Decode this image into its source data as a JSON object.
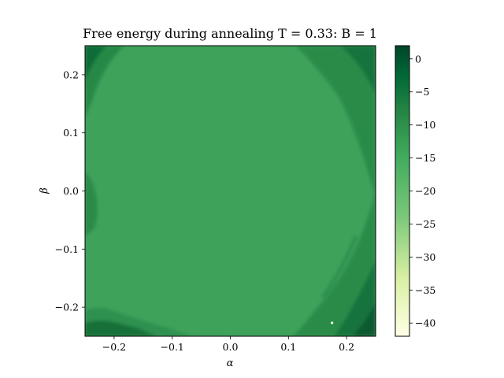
{
  "chart_data": {
    "type": "heatmap",
    "title": "Free energy during annealing T = 0.33:  B = 1",
    "xlabel": "α",
    "ylabel": "β",
    "xlim": [
      -0.25,
      0.25
    ],
    "ylim": [
      -0.25,
      0.25
    ],
    "x_ticks": [
      -0.2,
      -0.1,
      0.0,
      0.1,
      0.2
    ],
    "x_tick_labels": [
      "−0.2",
      "−0.1",
      "0.0",
      "0.1",
      "0.2"
    ],
    "y_ticks": [
      0.2,
      0.1,
      0.0,
      -0.1,
      -0.2
    ],
    "y_tick_labels": [
      "0.2",
      "0.1",
      "0.0",
      "−0.1",
      "−0.2"
    ],
    "colormap": "YlGn",
    "colors": [
      "#ffffe5",
      "#d9f0a3",
      "#78c679",
      "#41ab5d",
      "#238443",
      "#006837",
      "#004529"
    ],
    "background_value": -14,
    "colorbar": {
      "vmin": -42,
      "vmax": 2,
      "ticks": [
        0,
        -5,
        -10,
        -15,
        -20,
        -25,
        -30,
        -35,
        -40
      ],
      "tick_labels": [
        "0",
        "−5",
        "−10",
        "−15",
        "−20",
        "−25",
        "−30",
        "−35",
        "−40"
      ]
    },
    "minimum_marker": {
      "x": 0.175,
      "y": -0.227
    },
    "grid": false
  }
}
